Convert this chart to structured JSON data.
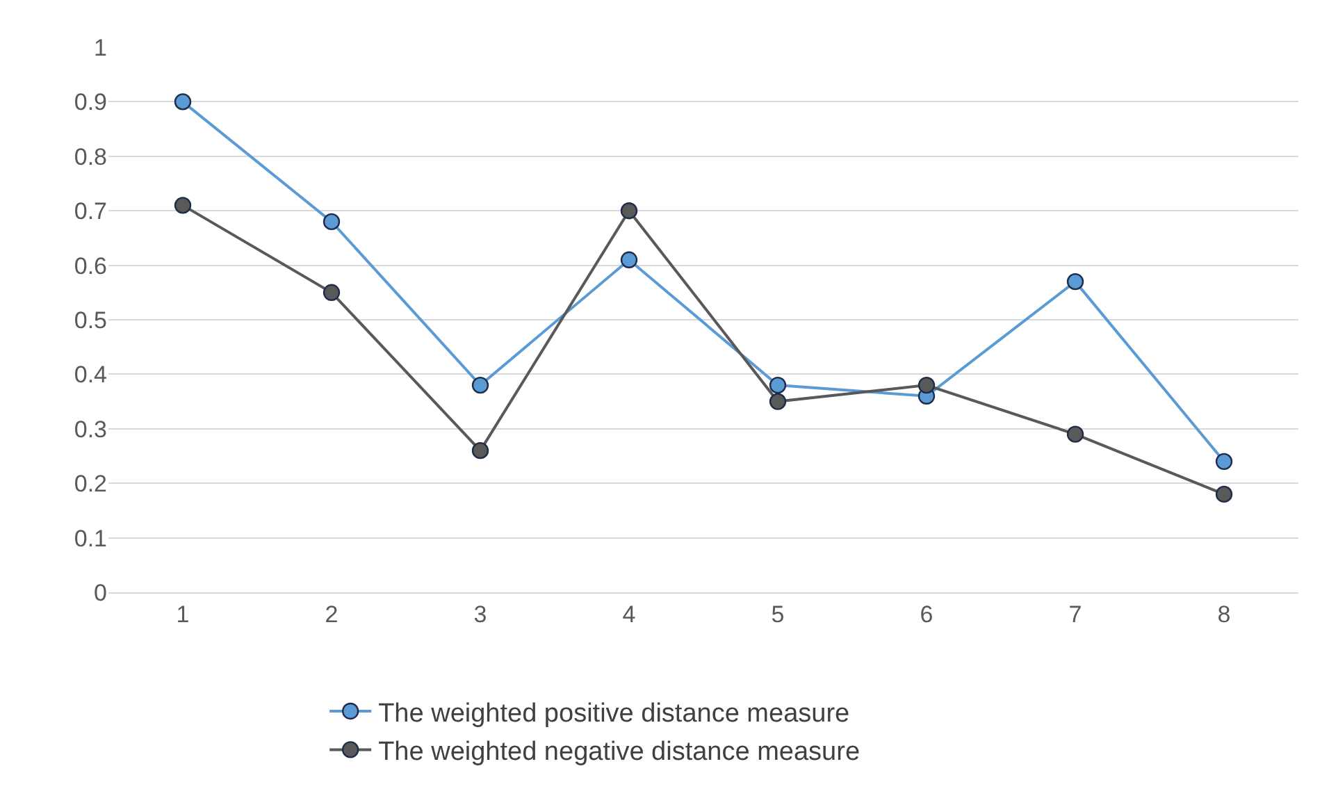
{
  "chart_data": {
    "type": "line",
    "categories": [
      "1",
      "2",
      "3",
      "4",
      "5",
      "6",
      "7",
      "8"
    ],
    "series": [
      {
        "name": "The weighted positive distance measure",
        "color": "#5b9bd5",
        "values": [
          0.9,
          0.68,
          0.38,
          0.61,
          0.38,
          0.36,
          0.57,
          0.24
        ]
      },
      {
        "name": "The weighted negative distance measure",
        "color": "#595959",
        "values": [
          0.71,
          0.55,
          0.26,
          0.7,
          0.35,
          0.38,
          0.29,
          0.18
        ]
      }
    ],
    "ylim": [
      0,
      1
    ],
    "yticks": [
      0,
      0.1,
      0.2,
      0.3,
      0.4,
      0.5,
      0.6,
      0.7,
      0.8,
      0.9,
      1
    ],
    "grid": "y",
    "legend": "bottom",
    "marker": "circle",
    "line_style": "solid"
  }
}
